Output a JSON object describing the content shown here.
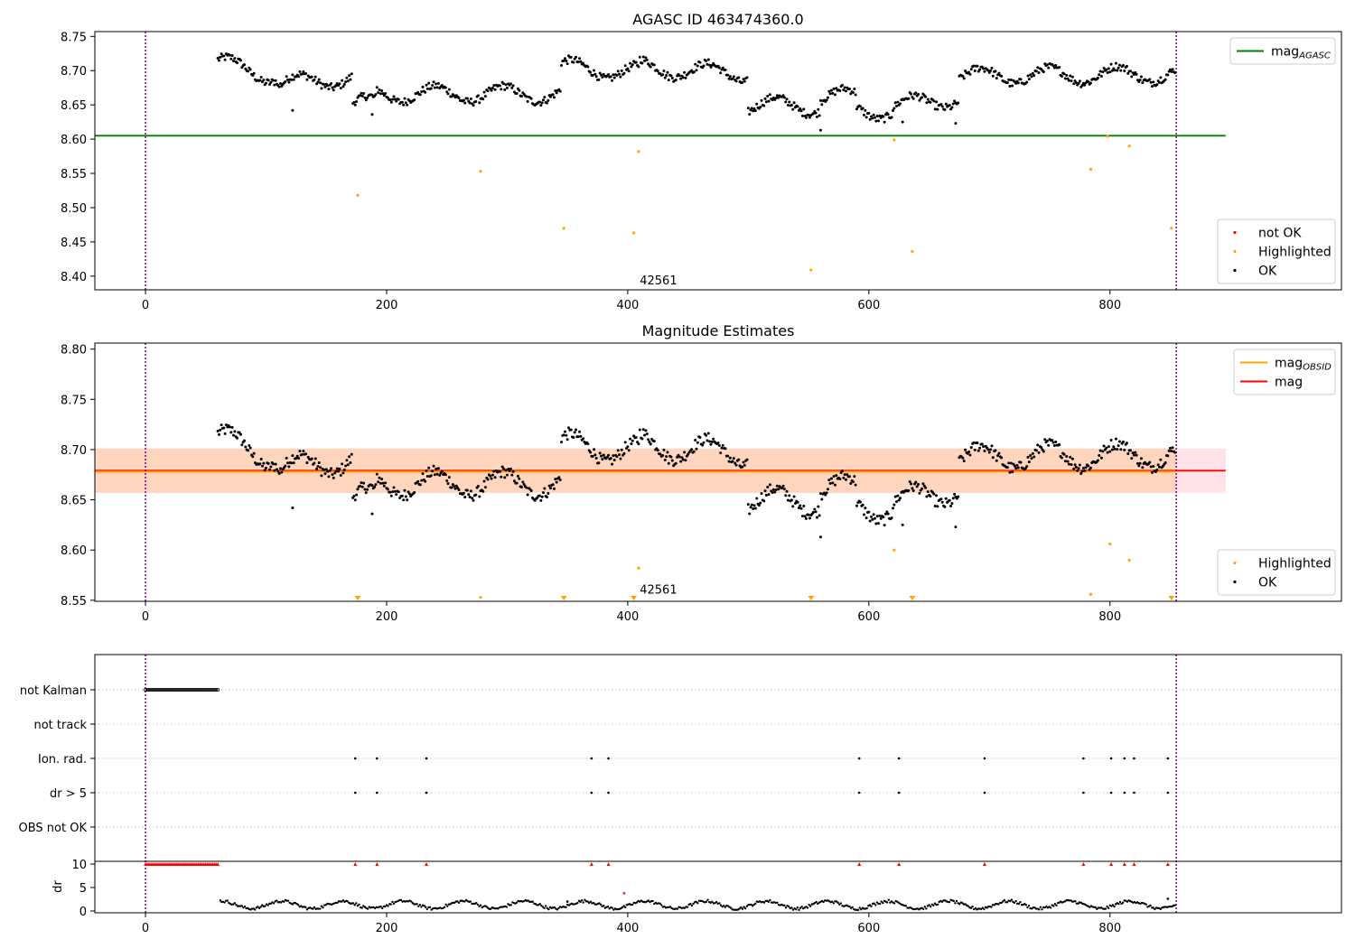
{
  "colors": {
    "ok": "#000000",
    "highlighted": "#ffa500",
    "not_ok": "#ff0000",
    "agasc_line": "#008000",
    "mag_line": "#ff0000",
    "obsid_line": "#ffa500",
    "band_pink": "#ffc0cb",
    "band_orange": "#ffd0b0",
    "vline": "#800080",
    "grid": "#b0b0b0"
  },
  "chart_data": [
    {
      "type": "scatter",
      "title": "AGASC ID 463474360.0",
      "xlim": [
        -42,
        992
      ],
      "ylim": [
        8.38,
        8.757
      ],
      "xticks": [
        0,
        200,
        400,
        600,
        800
      ],
      "yticks": [
        8.4,
        8.45,
        8.5,
        8.55,
        8.6,
        8.65,
        8.7,
        8.75
      ],
      "yfmt": 2,
      "grid": false,
      "vlines": [
        0,
        855
      ],
      "annotation": {
        "text": "42561",
        "x": 410,
        "y": 8.385
      },
      "hlines": [
        {
          "y": 8.605,
          "x0": -42,
          "x1": 896,
          "color": "#008000"
        }
      ],
      "band": null,
      "legend_upper": {
        "placement": "top-right",
        "entries": [
          {
            "label": "mag",
            "sub": "AGASC",
            "color": "#008000",
            "kind": "line"
          }
        ]
      },
      "legend_lower": {
        "placement": "bottom-right",
        "entries": [
          {
            "label": "not OK",
            "color": "#ff0000",
            "kind": "dot"
          },
          {
            "label": "Highlighted",
            "color": "#ffa500",
            "kind": "dot"
          },
          {
            "label": "OK",
            "color": "#000000",
            "kind": "dot"
          }
        ]
      },
      "ok_points": "generated from segments (OK samples, roughly one per frame, x≈60–855)",
      "highlighted": [
        [
          176,
          8.518
        ],
        [
          278,
          8.553
        ],
        [
          347,
          8.47
        ],
        [
          405,
          8.463
        ],
        [
          409,
          8.582
        ],
        [
          552,
          8.409
        ],
        [
          621,
          8.599
        ],
        [
          636,
          8.436
        ],
        [
          798,
          8.604
        ],
        [
          784,
          8.556
        ],
        [
          816,
          8.59
        ],
        [
          851,
          8.47
        ]
      ],
      "outliers": [
        [
          122,
          8.642
        ],
        [
          188,
          8.636
        ],
        [
          560,
          8.613
        ],
        [
          628,
          8.625
        ],
        [
          672,
          8.623
        ]
      ]
    },
    {
      "type": "scatter",
      "title": "Magnitude Estimates",
      "xlim": [
        -42,
        992
      ],
      "ylim": [
        8.549,
        8.806
      ],
      "xticks": [
        0,
        200,
        400,
        600,
        800
      ],
      "yticks": [
        8.55,
        8.6,
        8.65,
        8.7,
        8.75,
        8.8
      ],
      "yfmt": 2,
      "grid": false,
      "vlines": [
        0,
        855
      ],
      "annotation": {
        "text": "42561",
        "x": 410,
        "y": 8.555
      },
      "hlines": [
        {
          "y": 8.679,
          "x0": -42,
          "x1": 896,
          "color": "#ff0000"
        },
        {
          "y": 8.678,
          "x0": -42,
          "x1": 855,
          "color": "#ffa500"
        }
      ],
      "band": {
        "y0": 8.657,
        "y1": 8.701,
        "x0": -42,
        "x1": 896
      },
      "legend_upper": {
        "placement": "top-right",
        "entries": [
          {
            "label": "mag",
            "sub": "OBSID",
            "color": "#ffa500",
            "kind": "line"
          },
          {
            "label": "mag",
            "sub": "",
            "color": "#ff0000",
            "kind": "line"
          }
        ]
      },
      "legend_lower": {
        "placement": "bottom-right",
        "entries": [
          {
            "label": "Highlighted",
            "color": "#ffa500",
            "kind": "dot"
          },
          {
            "label": "OK",
            "color": "#000000",
            "kind": "dot"
          }
        ]
      },
      "highlighted": [
        [
          278,
          8.553
        ],
        [
          409,
          8.582
        ],
        [
          621,
          8.6
        ],
        [
          800,
          8.606
        ],
        [
          784,
          8.556
        ],
        [
          816,
          8.59
        ]
      ],
      "clipped": [
        176,
        347,
        405,
        552,
        636,
        851
      ],
      "outliers": [
        [
          122,
          8.642
        ],
        [
          188,
          8.636
        ],
        [
          560,
          8.613
        ],
        [
          628,
          8.625
        ],
        [
          672,
          8.623
        ]
      ]
    },
    {
      "type": "scatter",
      "title": "",
      "xlim": [
        -42,
        992
      ],
      "xticks": [
        0,
        200,
        400,
        600,
        800
      ],
      "vlines": [
        0,
        855
      ],
      "flags": [
        "not Kalman",
        "not track",
        "Ion. rad.",
        "dr > 5",
        "OBS not OK"
      ],
      "flag_points": {
        "not Kalman": "every ~2 frames from 0 to 60",
        "Ion. rad.": [
          174,
          192,
          233,
          370,
          384,
          592,
          625,
          696,
          778,
          801,
          812,
          820,
          848
        ],
        "dr > 5": [
          174,
          192,
          233,
          370,
          384,
          592,
          625,
          696,
          778,
          801,
          812,
          820,
          848
        ]
      },
      "dr": {
        "ylabel": "dr",
        "yticks": [
          0,
          5,
          10
        ],
        "ylim": [
          0,
          10
        ],
        "red_markers": "x 0–60 every ~2 frames, plus the Ion. rad. frames",
        "extra_points": [
          [
            397,
            3.8
          ],
          [
            848,
            2.6
          ],
          [
            350,
            2.0
          ]
        ]
      }
    }
  ]
}
